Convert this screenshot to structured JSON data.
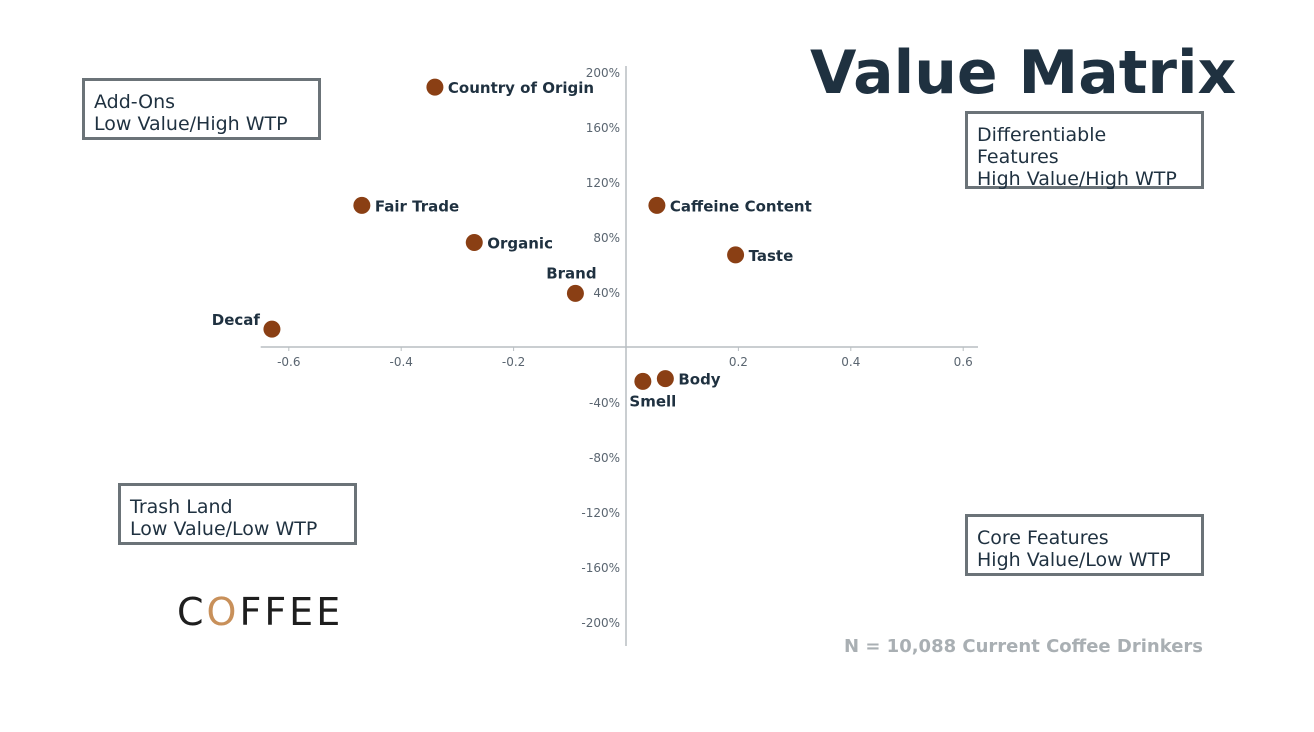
{
  "title": "Value Matrix",
  "quadrants": {
    "top_left": [
      "Add-Ons",
      "Low Value/High WTP"
    ],
    "top_right": [
      "Differentiable",
      "Features",
      "High Value/High WTP"
    ],
    "bottom_left": [
      "Trash Land",
      "Low Value/Low WTP"
    ],
    "bottom_right": [
      "Core Features",
      "High Value/Low WTP"
    ]
  },
  "footnote": "N = 10,088 Current Coffee Drinkers",
  "logo": {
    "text": "COFFEE",
    "pre": "C",
    "ring": "O",
    "post": "FFEE"
  },
  "colors": {
    "title": "#1f3140",
    "point": "#8a3f14",
    "axis": "#b8bec2",
    "tick": "#5a6570",
    "box": "#6b7378",
    "note": "#a9afb3"
  },
  "chart_data": {
    "type": "scatter",
    "title": "Value Matrix",
    "xlabel": "",
    "ylabel": "",
    "xlim": [
      -0.65,
      0.67
    ],
    "ylim": [
      -2.2,
      2.0
    ],
    "x_ticks": [
      {
        "value": -0.6,
        "label": "-0.6"
      },
      {
        "value": -0.4,
        "label": "-0.4"
      },
      {
        "value": -0.2,
        "label": "-0.2"
      },
      {
        "value": 0.2,
        "label": "0.2"
      },
      {
        "value": 0.4,
        "label": "0.4"
      },
      {
        "value": 0.6,
        "label": "0.6"
      }
    ],
    "y_ticks": [
      {
        "value": 2.0,
        "label": "200%"
      },
      {
        "value": 1.6,
        "label": "160%"
      },
      {
        "value": 1.2,
        "label": "120%"
      },
      {
        "value": 0.8,
        "label": "80%"
      },
      {
        "value": 0.4,
        "label": "40%"
      },
      {
        "value": -0.4,
        "label": "-40%"
      },
      {
        "value": -0.8,
        "label": "-80%"
      },
      {
        "value": -1.2,
        "label": "-120%"
      },
      {
        "value": -1.6,
        "label": "-160%"
      },
      {
        "value": -2.0,
        "label": "-200%"
      }
    ],
    "points": [
      {
        "label": "Country of Origin",
        "x": -0.34,
        "y": 1.89,
        "label_pos": "right"
      },
      {
        "label": "Fair Trade",
        "x": -0.47,
        "y": 1.03,
        "label_pos": "right"
      },
      {
        "label": "Organic",
        "x": -0.27,
        "y": 0.76,
        "label_pos": "right"
      },
      {
        "label": "Brand",
        "x": -0.09,
        "y": 0.39,
        "label_pos": "above"
      },
      {
        "label": "Decaf",
        "x": -0.63,
        "y": 0.13,
        "label_pos": "above-left"
      },
      {
        "label": "Caffeine Content",
        "x": 0.055,
        "y": 1.03,
        "label_pos": "right"
      },
      {
        "label": "Taste",
        "x": 0.195,
        "y": 0.67,
        "label_pos": "right"
      },
      {
        "label": "Body",
        "x": 0.07,
        "y": -0.23,
        "label_pos": "right"
      },
      {
        "label": "Smell",
        "x": 0.03,
        "y": -0.25,
        "label_pos": "below"
      }
    ]
  }
}
